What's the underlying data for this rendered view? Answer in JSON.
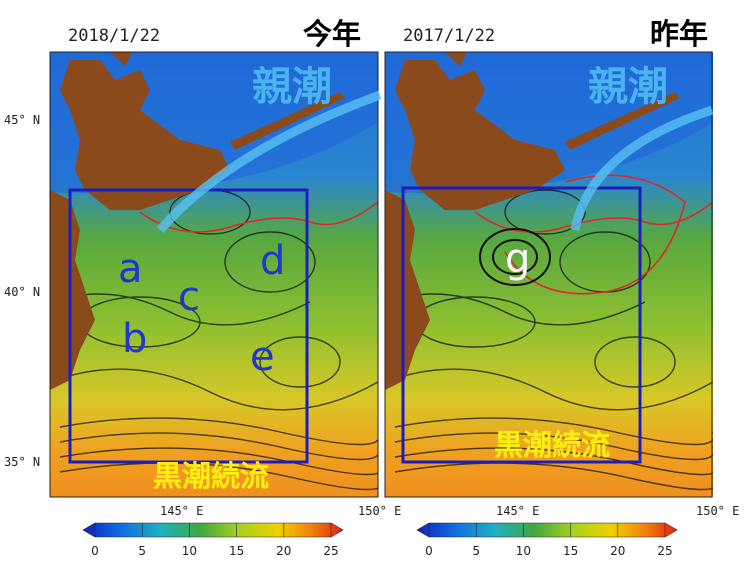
{
  "lat_labels": [
    "45° N",
    "40° N",
    "35° N"
  ],
  "panels": [
    {
      "date": "2018/1/22",
      "label": "今年",
      "oyashio": "親潮",
      "kuroshio": "黒潮続流",
      "eddies": [
        "a",
        "b",
        "c",
        "d",
        "e"
      ],
      "lon_labels": [
        "145° E",
        "150° E"
      ],
      "colorbar": {
        "ticks": [
          0,
          5,
          10,
          15,
          20,
          25
        ]
      }
    },
    {
      "date": "2017/1/22",
      "label": "昨年",
      "oyashio": "親潮",
      "kuroshio": "黒潮続流",
      "eddies": [
        "g"
      ],
      "lon_labels": [
        "145° E",
        "150° E"
      ],
      "colorbar": {
        "ticks": [
          0,
          5,
          10,
          15,
          20,
          25
        ]
      }
    }
  ]
}
